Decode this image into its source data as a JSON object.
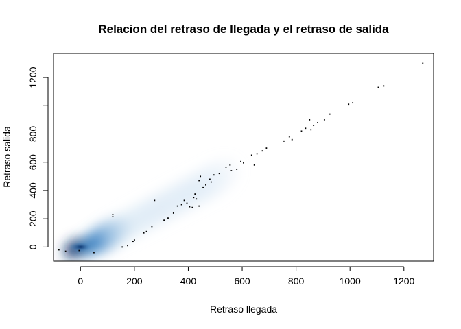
{
  "chart_data": {
    "type": "scatter",
    "subtype": "smoothScatter density",
    "title": "Relacion del retraso de llegada y el retraso de salida",
    "xlabel": "Retraso llegada",
    "ylabel": "Retraso salida",
    "xlim": [
      -100,
      1310
    ],
    "ylim": [
      -100,
      1370
    ],
    "x_ticks": [
      0,
      200,
      400,
      600,
      800,
      1000,
      1200
    ],
    "x_tick_labels": [
      "0",
      "200",
      "400",
      "600",
      "800",
      "1000",
      "1200"
    ],
    "y_ticks": [
      0,
      200,
      400,
      600,
      800,
      1000,
      1200
    ],
    "y_tick_labels": [
      "0",
      "200",
      "400",
      "600",
      "800",
      "",
      "1200"
    ],
    "grid": false,
    "legend": "none",
    "colors": {
      "density_dark": "#08306b",
      "density_mid": "#4a8fcb",
      "density_light": "#d6e6f4",
      "points": "#000000",
      "frame": "#000000"
    },
    "density": [
      {
        "x": 0,
        "y": 0,
        "weight": 1.0
      },
      {
        "x": -20,
        "y": -10,
        "weight": 0.9
      },
      {
        "x": 20,
        "y": 5,
        "weight": 0.85
      },
      {
        "x": 50,
        "y": 30,
        "weight": 0.6
      },
      {
        "x": 80,
        "y": 60,
        "weight": 0.45
      },
      {
        "x": 110,
        "y": 90,
        "weight": 0.35
      },
      {
        "x": 150,
        "y": 130,
        "weight": 0.28
      },
      {
        "x": 200,
        "y": 180,
        "weight": 0.22
      },
      {
        "x": 250,
        "y": 230,
        "weight": 0.17
      },
      {
        "x": 300,
        "y": 280,
        "weight": 0.13
      },
      {
        "x": 350,
        "y": 330,
        "weight": 0.1
      },
      {
        "x": 400,
        "y": 380,
        "weight": 0.07
      },
      {
        "x": 450,
        "y": 430,
        "weight": 0.05
      },
      {
        "x": 500,
        "y": 480,
        "weight": 0.03
      }
    ],
    "points": [
      {
        "x": -80,
        "y": -20
      },
      {
        "x": -55,
        "y": -30
      },
      {
        "x": -5,
        "y": -25
      },
      {
        "x": 50,
        "y": -40
      },
      {
        "x": 120,
        "y": 230
      },
      {
        "x": 120,
        "y": 215
      },
      {
        "x": 155,
        "y": 0
      },
      {
        "x": 175,
        "y": 10
      },
      {
        "x": 195,
        "y": 40
      },
      {
        "x": 200,
        "y": 50
      },
      {
        "x": 235,
        "y": 100
      },
      {
        "x": 245,
        "y": 110
      },
      {
        "x": 265,
        "y": 145
      },
      {
        "x": 275,
        "y": 330
      },
      {
        "x": 310,
        "y": 190
      },
      {
        "x": 325,
        "y": 205
      },
      {
        "x": 345,
        "y": 240
      },
      {
        "x": 360,
        "y": 290
      },
      {
        "x": 375,
        "y": 300
      },
      {
        "x": 385,
        "y": 330
      },
      {
        "x": 395,
        "y": 310
      },
      {
        "x": 405,
        "y": 285
      },
      {
        "x": 415,
        "y": 280
      },
      {
        "x": 420,
        "y": 350
      },
      {
        "x": 425,
        "y": 375
      },
      {
        "x": 430,
        "y": 340
      },
      {
        "x": 440,
        "y": 290
      },
      {
        "x": 440,
        "y": 470
      },
      {
        "x": 445,
        "y": 500
      },
      {
        "x": 455,
        "y": 420
      },
      {
        "x": 465,
        "y": 440
      },
      {
        "x": 480,
        "y": 480
      },
      {
        "x": 485,
        "y": 460
      },
      {
        "x": 495,
        "y": 510
      },
      {
        "x": 515,
        "y": 520
      },
      {
        "x": 540,
        "y": 565
      },
      {
        "x": 555,
        "y": 580
      },
      {
        "x": 560,
        "y": 540
      },
      {
        "x": 580,
        "y": 550
      },
      {
        "x": 595,
        "y": 605
      },
      {
        "x": 605,
        "y": 595
      },
      {
        "x": 635,
        "y": 650
      },
      {
        "x": 645,
        "y": 580
      },
      {
        "x": 655,
        "y": 660
      },
      {
        "x": 675,
        "y": 680
      },
      {
        "x": 690,
        "y": 700
      },
      {
        "x": 755,
        "y": 750
      },
      {
        "x": 775,
        "y": 780
      },
      {
        "x": 785,
        "y": 760
      },
      {
        "x": 820,
        "y": 820
      },
      {
        "x": 835,
        "y": 840
      },
      {
        "x": 850,
        "y": 900
      },
      {
        "x": 855,
        "y": 830
      },
      {
        "x": 865,
        "y": 860
      },
      {
        "x": 880,
        "y": 880
      },
      {
        "x": 905,
        "y": 900
      },
      {
        "x": 925,
        "y": 940
      },
      {
        "x": 995,
        "y": 1010
      },
      {
        "x": 1010,
        "y": 1020
      },
      {
        "x": 1105,
        "y": 1130
      },
      {
        "x": 1125,
        "y": 1140
      },
      {
        "x": 1270,
        "y": 1300
      }
    ]
  }
}
